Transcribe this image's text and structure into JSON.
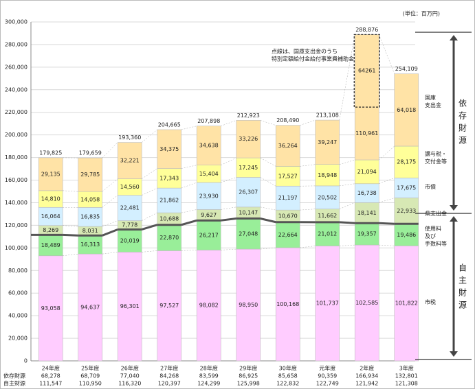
{
  "chart_data": {
    "type": "stacked_bar",
    "unit": "(単位：百万円)",
    "categories": [
      "24年度",
      "25年度",
      "26年度",
      "27年度",
      "28年度",
      "29年度",
      "30年度",
      "元年度",
      "2年度",
      "3年度"
    ],
    "series": [
      {
        "name": "市税",
        "color": "#ffccff",
        "values": [
          93058,
          94637,
          96301,
          97527,
          98082,
          98950,
          100168,
          101737,
          102585,
          101822
        ],
        "value_labels": [
          "93,058",
          "94,637",
          "96,301",
          "97,527",
          "98,082",
          "98,950",
          "100,168",
          "101,737",
          "102,585",
          "101,822"
        ]
      },
      {
        "name": "使用料及び手数料等",
        "color": "#99ee99",
        "values": [
          18489,
          16313,
          20019,
          22870,
          26217,
          27048,
          22664,
          21012,
          19357,
          19486
        ],
        "value_labels": [
          "18,489",
          "16,313",
          "20,019",
          "22,870",
          "26,217",
          "27,048",
          "22,664",
          "21,012",
          "19,357",
          "19,486"
        ]
      },
      {
        "name": "県支出金",
        "color": "#d7e8b4",
        "values": [
          8269,
          8031,
          7778,
          10688,
          9627,
          10147,
          10670,
          11662,
          18141,
          22933
        ],
        "value_labels": [
          "8,269",
          "8,031",
          "7,778",
          "10,688",
          "9,627",
          "10,147",
          "10,670",
          "11,662",
          "18,141",
          "22,933"
        ]
      },
      {
        "name": "市債",
        "color": "#d3efff",
        "values": [
          16064,
          16835,
          22481,
          21862,
          23930,
          26307,
          21197,
          20502,
          16738,
          17675
        ],
        "value_labels": [
          "16,064",
          "16,835",
          "22,481",
          "21,862",
          "23,930",
          "26,307",
          "21,197",
          "20,502",
          "16,738",
          "17,675"
        ]
      },
      {
        "name": "譲与税・交付金等",
        "color": "#ffff99",
        "values": [
          14810,
          14058,
          14560,
          17343,
          15404,
          17245,
          17527,
          18948,
          21094,
          28175
        ],
        "value_labels": [
          "14,810",
          "14,058",
          "14,560",
          "17,343",
          "15,404",
          "17,245",
          "17,527",
          "18,948",
          "21,094",
          "28,175"
        ]
      },
      {
        "name": "国庫支出金",
        "color": "#ffe3a6",
        "values": [
          29135,
          29785,
          32221,
          34375,
          34638,
          33226,
          36264,
          39247,
          110961,
          64018
        ],
        "value_labels": [
          "29,135",
          "29,785",
          "32,221",
          "34,375",
          "34,638",
          "33,226",
          "36,264",
          "39,247",
          "110,961",
          "64,018"
        ]
      }
    ],
    "totals": {
      "values": [
        179825,
        179659,
        193360,
        204665,
        207898,
        212923,
        208490,
        213108,
        288876,
        254109
      ],
      "value_labels": [
        "179,825",
        "179,659",
        "193,360",
        "204,665",
        "207,898",
        "212,923",
        "208,490",
        "213,108",
        "288,876",
        "254,109"
      ]
    },
    "highlight": {
      "category": "2年度",
      "value": 64261,
      "note": [
        "点線は、国庫支出金のうち",
        "特別定額給付金給付事業費補助金"
      ]
    },
    "dependent": {
      "name": "依存財源",
      "values": [
        68278,
        68709,
        77040,
        84268,
        83599,
        86925,
        85658,
        90359,
        166934,
        132801
      ],
      "value_labels": [
        "68,278",
        "68,709",
        "77,040",
        "84,268",
        "83,599",
        "86,925",
        "85,658",
        "90,359",
        "166,934",
        "132,801"
      ]
    },
    "own": {
      "name": "自主財源",
      "color": "#555555",
      "values": [
        111547,
        110950,
        116320,
        120397,
        124299,
        125998,
        122832,
        122749,
        121942,
        121308
      ],
      "value_labels": [
        "111,547",
        "110,950",
        "116,320",
        "120,397",
        "124,299",
        "125,998",
        "122,832",
        "122,749",
        "121,942",
        "121,308"
      ]
    },
    "ylim": [
      0,
      300000
    ],
    "yticks": [
      0,
      {
        "value": 20000,
        "label": "20,000"
      },
      {
        "value": 40000,
        "label": "40,000"
      },
      {
        "value": 60000,
        "label": "60,000"
      },
      {
        "value": 80000,
        "label": "80,000"
      },
      {
        "value": 100000,
        "label": "100,000"
      },
      {
        "value": 120000,
        "label": "120,000"
      },
      {
        "value": 140000,
        "label": "140,000"
      },
      {
        "value": 160000,
        "label": "160,000"
      },
      {
        "value": 180000,
        "label": "180,000"
      },
      {
        "value": 200000,
        "label": "200,000"
      },
      {
        "value": 220000,
        "label": "220,000"
      },
      {
        "value": 240000,
        "label": "240,000"
      },
      {
        "value": 260000,
        "label": "260,000"
      },
      {
        "value": 280000,
        "label": "280,000"
      },
      {
        "value": 300000,
        "label": "300,000"
      }
    ],
    "grid": true
  }
}
